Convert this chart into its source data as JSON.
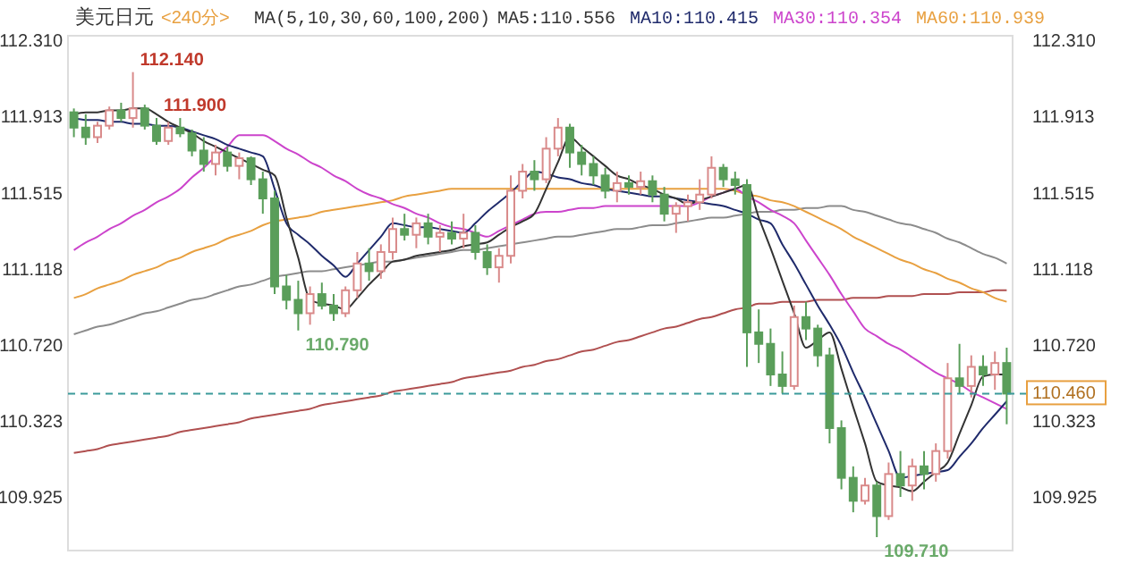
{
  "chart_data": {
    "type": "candlestick",
    "title": "美元日元",
    "subtitle": "<240分>",
    "annotations": [
      "MA(5,10,30,60,100,200)",
      "112.140",
      "110.790",
      "111.900",
      "109.710"
    ],
    "categories": [
      null,
      null,
      null,
      null,
      null,
      null,
      null,
      null,
      null,
      null,
      null,
      null,
      null,
      null,
      null,
      null,
      null,
      null,
      null,
      null,
      null,
      null,
      null,
      null,
      null,
      null,
      null,
      null,
      null,
      null,
      null,
      null,
      null,
      null,
      null,
      null,
      null,
      null,
      null,
      null,
      null,
      null,
      null,
      null,
      null,
      null,
      null,
      null,
      null,
      null,
      null,
      null,
      null,
      null,
      null,
      null,
      null,
      null,
      null,
      null,
      null,
      null,
      null,
      null,
      null,
      null,
      null,
      null,
      null,
      null,
      null,
      null,
      null,
      null,
      null,
      null,
      null,
      null,
      null,
      null
    ],
    "ohlc": [
      [
        111.93,
        111.95,
        111.8,
        111.85
      ],
      [
        111.85,
        111.92,
        111.76,
        111.8
      ],
      [
        111.8,
        111.88,
        111.77,
        111.86
      ],
      [
        111.86,
        111.96,
        111.84,
        111.94
      ],
      [
        111.94,
        111.98,
        111.88,
        111.9
      ],
      [
        111.9,
        112.14,
        111.85,
        111.95
      ],
      [
        111.95,
        111.97,
        111.84,
        111.86
      ],
      [
        111.86,
        111.9,
        111.76,
        111.78
      ],
      [
        111.78,
        111.88,
        111.76,
        111.85
      ],
      [
        111.85,
        111.9,
        111.8,
        111.82
      ],
      [
        111.82,
        111.84,
        111.7,
        111.73
      ],
      [
        111.73,
        111.8,
        111.62,
        111.66
      ],
      [
        111.66,
        111.76,
        111.6,
        111.72
      ],
      [
        111.72,
        111.75,
        111.62,
        111.65
      ],
      [
        111.65,
        111.72,
        111.58,
        111.69
      ],
      [
        111.69,
        111.7,
        111.55,
        111.58
      ],
      [
        111.58,
        111.62,
        111.4,
        111.48
      ],
      [
        111.48,
        111.52,
        110.98,
        111.02
      ],
      [
        111.02,
        111.08,
        110.9,
        110.95
      ],
      [
        110.95,
        111.05,
        110.79,
        110.88
      ],
      [
        110.88,
        111.02,
        110.82,
        110.98
      ],
      [
        110.98,
        111.04,
        110.9,
        110.92
      ],
      [
        110.92,
        110.98,
        110.84,
        110.88
      ],
      [
        110.88,
        111.02,
        110.86,
        111.0
      ],
      [
        111.0,
        111.2,
        110.96,
        111.14
      ],
      [
        111.14,
        111.22,
        111.05,
        111.1
      ],
      [
        111.1,
        111.24,
        111.06,
        111.2
      ],
      [
        111.2,
        111.38,
        111.16,
        111.32
      ],
      [
        111.32,
        111.4,
        111.26,
        111.29
      ],
      [
        111.29,
        111.38,
        111.22,
        111.35
      ],
      [
        111.35,
        111.4,
        111.24,
        111.28
      ],
      [
        111.28,
        111.34,
        111.2,
        111.3
      ],
      [
        111.3,
        111.36,
        111.24,
        111.27
      ],
      [
        111.27,
        111.4,
        111.22,
        111.3
      ],
      [
        111.3,
        111.34,
        111.16,
        111.2
      ],
      [
        111.2,
        111.24,
        111.08,
        111.12
      ],
      [
        111.12,
        111.22,
        111.04,
        111.18
      ],
      [
        111.18,
        111.6,
        111.14,
        111.52
      ],
      [
        111.52,
        111.66,
        111.48,
        111.62
      ],
      [
        111.62,
        111.68,
        111.52,
        111.58
      ],
      [
        111.58,
        111.8,
        111.56,
        111.74
      ],
      [
        111.74,
        111.9,
        111.7,
        111.85
      ],
      [
        111.85,
        111.87,
        111.64,
        111.72
      ],
      [
        111.72,
        111.76,
        111.6,
        111.66
      ],
      [
        111.66,
        111.7,
        111.55,
        111.6
      ],
      [
        111.6,
        111.64,
        111.48,
        111.52
      ],
      [
        111.52,
        111.62,
        111.46,
        111.56
      ],
      [
        111.56,
        111.6,
        111.5,
        111.54
      ],
      [
        111.54,
        111.62,
        111.5,
        111.57
      ],
      [
        111.57,
        111.6,
        111.46,
        111.5
      ],
      [
        111.5,
        111.54,
        111.36,
        111.4
      ],
      [
        111.4,
        111.46,
        111.3,
        111.44
      ],
      [
        111.44,
        111.5,
        111.36,
        111.46
      ],
      [
        111.46,
        111.58,
        111.42,
        111.5
      ],
      [
        111.5,
        111.7,
        111.48,
        111.64
      ],
      [
        111.64,
        111.66,
        111.54,
        111.58
      ],
      [
        111.58,
        111.62,
        111.5,
        111.55
      ],
      [
        111.55,
        111.58,
        110.6,
        110.78
      ],
      [
        110.78,
        110.9,
        110.62,
        110.72
      ],
      [
        110.72,
        110.8,
        110.5,
        110.56
      ],
      [
        110.56,
        110.68,
        110.46,
        110.5
      ],
      [
        110.5,
        110.92,
        110.48,
        110.86
      ],
      [
        110.86,
        110.94,
        110.74,
        110.8
      ],
      [
        110.8,
        110.82,
        110.6,
        110.66
      ],
      [
        110.66,
        110.7,
        110.2,
        110.28
      ],
      [
        110.28,
        110.32,
        109.96,
        110.02
      ],
      [
        110.02,
        110.08,
        109.84,
        109.9
      ],
      [
        109.9,
        110.02,
        109.88,
        109.98
      ],
      [
        109.98,
        110.0,
        109.71,
        109.82
      ],
      [
        109.82,
        110.1,
        109.8,
        110.04
      ],
      [
        110.04,
        110.16,
        109.92,
        109.98
      ],
      [
        109.98,
        110.12,
        109.9,
        110.08
      ],
      [
        110.08,
        110.16,
        109.96,
        110.04
      ],
      [
        110.04,
        110.2,
        110.0,
        110.16
      ],
      [
        110.16,
        110.62,
        110.12,
        110.54
      ],
      [
        110.54,
        110.72,
        110.46,
        110.5
      ],
      [
        110.5,
        110.66,
        110.44,
        110.6
      ],
      [
        110.6,
        110.66,
        110.5,
        110.56
      ],
      [
        110.56,
        110.68,
        110.48,
        110.62
      ],
      [
        110.62,
        110.7,
        110.3,
        110.46
      ]
    ],
    "series": [
      {
        "type": "line",
        "color": "#b05050",
        "values": [
          110.15,
          110.16,
          110.17,
          110.19,
          110.2,
          110.21,
          110.22,
          110.23,
          110.24,
          110.26,
          110.27,
          110.28,
          110.29,
          110.3,
          110.31,
          110.33,
          110.34,
          110.35,
          110.36,
          110.37,
          110.38,
          110.4,
          110.41,
          110.42,
          110.43,
          110.44,
          110.45,
          110.47,
          110.48,
          110.49,
          110.5,
          110.51,
          110.52,
          110.54,
          110.55,
          110.56,
          110.57,
          110.58,
          110.6,
          110.61,
          110.63,
          110.64,
          110.66,
          110.68,
          110.69,
          110.71,
          110.73,
          110.74,
          110.76,
          110.78,
          110.8,
          110.81,
          110.83,
          110.85,
          110.86,
          110.88,
          110.9,
          110.91,
          110.93,
          110.93,
          110.94,
          110.94,
          110.94,
          110.95,
          110.95,
          110.95,
          110.96,
          110.96,
          110.96,
          110.97,
          110.97,
          110.97,
          110.98,
          110.98,
          110.98,
          110.99,
          110.99,
          110.99,
          111.0,
          111.0
        ]
      },
      {
        "type": "line",
        "color": "#8c8c8c",
        "values": [
          110.77,
          110.79,
          110.81,
          110.82,
          110.84,
          110.86,
          110.88,
          110.89,
          110.91,
          110.93,
          110.95,
          110.96,
          110.98,
          111.0,
          111.02,
          111.03,
          111.05,
          111.07,
          111.08,
          111.09,
          111.1,
          111.1,
          111.11,
          111.12,
          111.13,
          111.14,
          111.15,
          111.15,
          111.16,
          111.17,
          111.18,
          111.19,
          111.2,
          111.21,
          111.21,
          111.22,
          111.23,
          111.24,
          111.25,
          111.26,
          111.27,
          111.28,
          111.28,
          111.29,
          111.3,
          111.31,
          111.32,
          111.32,
          111.33,
          111.34,
          111.34,
          111.35,
          111.36,
          111.37,
          111.38,
          111.38,
          111.39,
          111.4,
          111.41,
          111.41,
          111.42,
          111.42,
          111.43,
          111.43,
          111.44,
          111.44,
          111.42,
          111.41,
          111.39,
          111.37,
          111.35,
          111.34,
          111.32,
          111.3,
          111.27,
          111.25,
          111.22,
          111.19,
          111.17,
          111.14
        ]
      },
      {
        "type": "line",
        "name": "MA60:110.939",
        "color": "#e8a040",
        "values": [
          110.96,
          110.98,
          111.01,
          111.03,
          111.05,
          111.08,
          111.1,
          111.12,
          111.15,
          111.17,
          111.2,
          111.22,
          111.24,
          111.27,
          111.29,
          111.31,
          111.34,
          111.36,
          111.37,
          111.38,
          111.39,
          111.41,
          111.42,
          111.43,
          111.44,
          111.45,
          111.46,
          111.47,
          111.49,
          111.5,
          111.51,
          111.52,
          111.53,
          111.53,
          111.53,
          111.53,
          111.53,
          111.53,
          111.53,
          111.53,
          111.53,
          111.53,
          111.53,
          111.53,
          111.53,
          111.53,
          111.53,
          111.53,
          111.53,
          111.53,
          111.53,
          111.53,
          111.53,
          111.53,
          111.53,
          111.53,
          111.52,
          111.5,
          111.49,
          111.47,
          111.46,
          111.44,
          111.41,
          111.38,
          111.35,
          111.32,
          111.28,
          111.25,
          111.22,
          111.19,
          111.16,
          111.14,
          111.11,
          111.09,
          111.06,
          111.04,
          111.01,
          110.99,
          110.96,
          110.94
        ]
      },
      {
        "type": "line",
        "name": "MA30:110.354",
        "color": "#cc44cc",
        "values": [
          111.21,
          111.25,
          111.28,
          111.32,
          111.35,
          111.39,
          111.42,
          111.46,
          111.49,
          111.53,
          111.59,
          111.64,
          111.7,
          111.75,
          111.81,
          111.81,
          111.81,
          111.78,
          111.74,
          111.71,
          111.67,
          111.64,
          111.6,
          111.57,
          111.53,
          111.5,
          111.48,
          111.45,
          111.43,
          111.4,
          111.38,
          111.35,
          111.33,
          111.32,
          111.3,
          111.28,
          111.31,
          111.34,
          111.37,
          111.4,
          111.41,
          111.41,
          111.42,
          111.43,
          111.43,
          111.44,
          111.44,
          111.44,
          111.44,
          111.44,
          111.44,
          111.44,
          111.44,
          111.46,
          111.49,
          111.51,
          111.53,
          111.49,
          111.46,
          111.42,
          111.39,
          111.35,
          111.26,
          111.17,
          111.08,
          110.98,
          110.89,
          110.8,
          110.76,
          110.72,
          110.69,
          110.65,
          110.61,
          110.57,
          110.54,
          110.51,
          110.47,
          110.44,
          110.41,
          110.38
        ]
      },
      {
        "type": "line",
        "name": "MA10:110.415",
        "color": "#1f2a6b",
        "values": [
          111.9,
          111.89,
          111.89,
          111.88,
          111.88,
          111.87,
          111.87,
          111.86,
          111.86,
          111.85,
          111.83,
          111.81,
          111.79,
          111.76,
          111.74,
          111.72,
          111.7,
          111.53,
          111.35,
          111.29,
          111.24,
          111.18,
          111.13,
          111.07,
          111.14,
          111.21,
          111.28,
          111.35,
          111.34,
          111.33,
          111.33,
          111.32,
          111.31,
          111.3,
          111.35,
          111.41,
          111.46,
          111.51,
          111.57,
          111.62,
          111.61,
          111.59,
          111.58,
          111.56,
          111.55,
          111.53,
          111.52,
          111.51,
          111.5,
          111.49,
          111.49,
          111.48,
          111.47,
          111.46,
          111.45,
          111.44,
          111.42,
          111.4,
          111.37,
          111.35,
          111.24,
          111.14,
          111.03,
          110.92,
          110.82,
          110.71,
          110.57,
          110.44,
          110.3,
          110.16,
          110.02,
          110.03,
          110.04,
          110.05,
          110.06,
          110.13,
          110.2,
          110.28,
          110.35,
          110.42
        ]
      },
      {
        "type": "line",
        "name": "MA5:110.556",
        "color": "#333333",
        "values": [
          111.92,
          111.93,
          111.93,
          111.94,
          111.94,
          111.95,
          111.95,
          111.92,
          111.88,
          111.85,
          111.82,
          111.78,
          111.75,
          111.72,
          111.69,
          111.66,
          111.63,
          111.6,
          111.38,
          111.17,
          110.95,
          110.93,
          110.92,
          110.9,
          110.96,
          111.03,
          111.09,
          111.15,
          111.16,
          111.18,
          111.19,
          111.2,
          111.21,
          111.23,
          111.24,
          111.25,
          111.29,
          111.33,
          111.36,
          111.4,
          111.53,
          111.67,
          111.8,
          111.75,
          111.7,
          111.65,
          111.6,
          111.58,
          111.55,
          111.53,
          111.5,
          111.48,
          111.45,
          111.47,
          111.49,
          111.51,
          111.53,
          111.55,
          111.38,
          111.22,
          111.05,
          110.88,
          110.7,
          110.74,
          110.78,
          110.59,
          110.39,
          110.2,
          110.0,
          109.98,
          109.97,
          109.95,
          110.0,
          110.05,
          110.1,
          110.25,
          110.4,
          110.55,
          110.56,
          110.56
        ]
      }
    ],
    "ylim": [
      109.64,
      112.33
    ],
    "yticks": [
      {
        "value": 112.31,
        "label": "112.310"
      },
      {
        "value": 111.913,
        "label": "111.913"
      },
      {
        "value": 111.515,
        "label": "111.515"
      },
      {
        "value": 111.118,
        "label": "111.118"
      },
      {
        "value": 110.72,
        "label": "110.720"
      },
      {
        "value": 110.323,
        "label": "110.323"
      },
      {
        "value": 109.925,
        "label": "109.925"
      }
    ],
    "y2lim": [
      109.64,
      112.33
    ],
    "y2ticks": [
      {
        "value": 112.31,
        "label": "112.310"
      },
      {
        "value": 111.913,
        "label": "111.913"
      },
      {
        "value": 111.515,
        "label": "111.515"
      },
      {
        "value": 111.118,
        "label": "111.118"
      },
      {
        "value": 110.72,
        "label": "110.720"
      },
      {
        "value": 110.323,
        "label": "110.323"
      },
      {
        "value": 109.925,
        "label": "109.925"
      }
    ],
    "ref_lines": [
      {
        "axis": "y",
        "value": 110.46,
        "label": "110.460",
        "color": "#3a9a9a",
        "line_style": "dashed"
      }
    ],
    "legend": "top"
  }
}
